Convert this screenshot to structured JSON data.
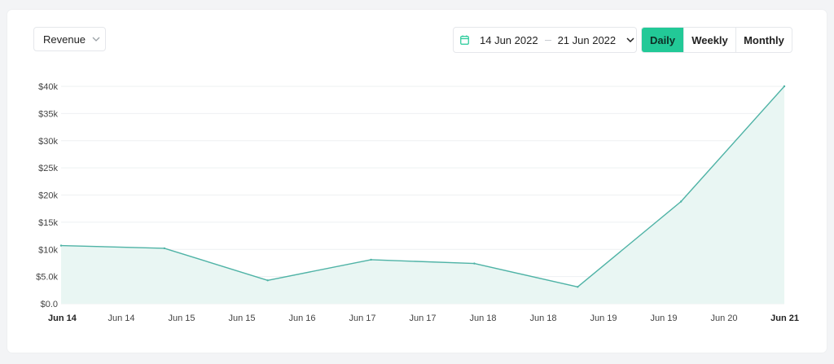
{
  "controls": {
    "metric_label": "Revenue",
    "date_start": "14 Jun 2022",
    "date_end": "21 Jun 2022",
    "periods": [
      "Daily",
      "Weekly",
      "Monthly"
    ],
    "active_period": "Daily"
  },
  "colors": {
    "line": "#4fb3a6",
    "fill": "#e9f6f3",
    "accent": "#22c997",
    "grid": "#eef0f2"
  },
  "chart_data": {
    "type": "area",
    "title": "",
    "xlabel": "",
    "ylabel": "",
    "ylim": [
      0,
      40000
    ],
    "y_ticks": [
      {
        "value": 0,
        "label": "$0.0"
      },
      {
        "value": 5000,
        "label": "$5.0k"
      },
      {
        "value": 10000,
        "label": "$10k"
      },
      {
        "value": 15000,
        "label": "$15k"
      },
      {
        "value": 20000,
        "label": "$20k"
      },
      {
        "value": 25000,
        "label": "$25k"
      },
      {
        "value": 30000,
        "label": "$30k"
      },
      {
        "value": 35000,
        "label": "$35k"
      },
      {
        "value": 40000,
        "label": "$40k"
      }
    ],
    "x_ticks": [
      {
        "label": "Jun 14",
        "bold": true
      },
      {
        "label": "Jun 14",
        "bold": false
      },
      {
        "label": "Jun 15",
        "bold": false
      },
      {
        "label": "Jun 15",
        "bold": false
      },
      {
        "label": "Jun 16",
        "bold": false
      },
      {
        "label": "Jun 17",
        "bold": false
      },
      {
        "label": "Jun 17",
        "bold": false
      },
      {
        "label": "Jun 18",
        "bold": false
      },
      {
        "label": "Jun 18",
        "bold": false
      },
      {
        "label": "Jun 19",
        "bold": false
      },
      {
        "label": "Jun 19",
        "bold": false
      },
      {
        "label": "Jun 20",
        "bold": false
      },
      {
        "label": "Jun 21",
        "bold": true
      }
    ],
    "x": [
      "Jun 14",
      "Jun 15",
      "Jun 16",
      "Jun 17",
      "Jun 18",
      "Jun 19",
      "Jun 20",
      "Jun 21"
    ],
    "values": [
      10700,
      10200,
      4300,
      8100,
      7400,
      3100,
      18800,
      40000
    ],
    "grid": true,
    "legend": "none"
  }
}
